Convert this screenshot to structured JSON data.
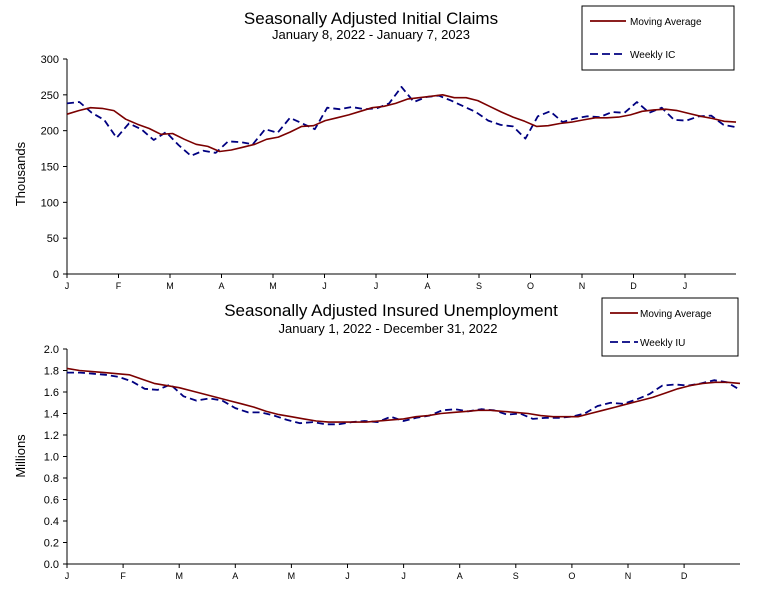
{
  "chart_data": [
    {
      "type": "line",
      "title": "Seasonally Adjusted Initial Claims",
      "subtitle": "January 8, 2022 - January 7, 2023",
      "ylabel": "Thousands",
      "ylim": [
        0,
        300
      ],
      "yticks": [
        "0",
        "50",
        "100",
        "150",
        "200",
        "250",
        "300"
      ],
      "month_labels": [
        "J",
        "F",
        "M",
        "A",
        "M",
        "J",
        "J",
        "A",
        "S",
        "O",
        "N",
        "D",
        "J"
      ],
      "grid": false,
      "legend_position": "top-right",
      "series": [
        {
          "name": "Moving Average",
          "color": "#7b0000",
          "style": "solid",
          "values": [
            223,
            228,
            232,
            231,
            228,
            216,
            209,
            203,
            195,
            196,
            188,
            181,
            178,
            171,
            173,
            177,
            181,
            188,
            191,
            198,
            206,
            207,
            214,
            218,
            222,
            227,
            232,
            234,
            238,
            244,
            246,
            248,
            250,
            246,
            246,
            242,
            234,
            226,
            219,
            213,
            206,
            207,
            210,
            212,
            215,
            218,
            218,
            219,
            222,
            227,
            229,
            230,
            228,
            224,
            220,
            217,
            213,
            212
          ]
        },
        {
          "name": "Weekly IC",
          "color": "#000080",
          "style": "dashed",
          "values": [
            238,
            240,
            225,
            215,
            190,
            210,
            202,
            187,
            198,
            180,
            165,
            172,
            169,
            185,
            184,
            181,
            202,
            197,
            218,
            210,
            202,
            232,
            230,
            233,
            230,
            231,
            238,
            261,
            240,
            247,
            249,
            242,
            234,
            226,
            214,
            208,
            206,
            189,
            220,
            227,
            212,
            217,
            220,
            219,
            226,
            225,
            240,
            225,
            232,
            215,
            214,
            220,
            221,
            208,
            205
          ]
        }
      ]
    },
    {
      "type": "line",
      "title": "Seasonally Adjusted Insured Unemployment",
      "subtitle": "January 1, 2022 - December 31, 2022",
      "ylabel": "Millions",
      "ylim": [
        0.0,
        2.0
      ],
      "yticks": [
        "0.0",
        "0.2",
        "0.4",
        "0.6",
        "0.8",
        "1.0",
        "1.2",
        "1.4",
        "1.6",
        "1.8",
        "2.0"
      ],
      "month_labels": [
        "J",
        "F",
        "M",
        "A",
        "M",
        "J",
        "J",
        "A",
        "S",
        "O",
        "N",
        "D"
      ],
      "grid": false,
      "legend_position": "top-right",
      "series": [
        {
          "name": "Moving Average",
          "color": "#7b0000",
          "style": "solid",
          "values": [
            1.82,
            1.8,
            1.79,
            1.78,
            1.77,
            1.76,
            1.72,
            1.68,
            1.66,
            1.64,
            1.61,
            1.58,
            1.55,
            1.52,
            1.49,
            1.46,
            1.42,
            1.39,
            1.37,
            1.35,
            1.33,
            1.32,
            1.32,
            1.32,
            1.32,
            1.33,
            1.34,
            1.35,
            1.37,
            1.38,
            1.4,
            1.41,
            1.42,
            1.43,
            1.43,
            1.42,
            1.41,
            1.4,
            1.38,
            1.37,
            1.37,
            1.37,
            1.4,
            1.43,
            1.46,
            1.49,
            1.52,
            1.55,
            1.59,
            1.63,
            1.66,
            1.68,
            1.69,
            1.69,
            1.68
          ]
        },
        {
          "name": "Weekly IU",
          "color": "#000080",
          "style": "dashed",
          "values": [
            1.78,
            1.78,
            1.77,
            1.76,
            1.74,
            1.7,
            1.63,
            1.62,
            1.67,
            1.56,
            1.52,
            1.54,
            1.52,
            1.45,
            1.41,
            1.41,
            1.38,
            1.34,
            1.31,
            1.32,
            1.3,
            1.3,
            1.32,
            1.33,
            1.32,
            1.37,
            1.33,
            1.36,
            1.38,
            1.43,
            1.44,
            1.42,
            1.44,
            1.43,
            1.39,
            1.4,
            1.35,
            1.36,
            1.36,
            1.37,
            1.4,
            1.47,
            1.5,
            1.49,
            1.53,
            1.58,
            1.66,
            1.67,
            1.66,
            1.68,
            1.71,
            1.69,
            1.62
          ]
        }
      ]
    }
  ]
}
